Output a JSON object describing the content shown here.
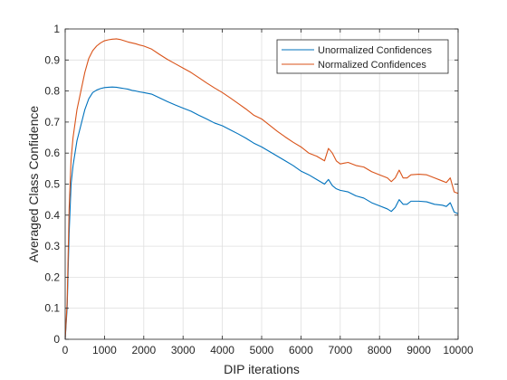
{
  "colors": {
    "series1": "#0072BD",
    "series2": "#D95319",
    "grid": "#DFDFDF",
    "axis": "#262626"
  },
  "chart_data": {
    "type": "line",
    "xlabel": "DIP iterations",
    "ylabel": "Averaged Class Confidence",
    "xlim": [
      0,
      10000
    ],
    "ylim": [
      0,
      1
    ],
    "xticks": [
      0,
      1000,
      2000,
      3000,
      4000,
      5000,
      6000,
      7000,
      8000,
      9000,
      10000
    ],
    "yticks": [
      0,
      0.1,
      0.2,
      0.3,
      0.4,
      0.5,
      0.6,
      0.7,
      0.8,
      0.9,
      1
    ],
    "grid": true,
    "legend_position": "top-right",
    "series": [
      {
        "name": "Unormalized Confidences",
        "color": "#0072BD",
        "x": [
          0,
          50,
          100,
          150,
          200,
          300,
          400,
          500,
          600,
          700,
          800,
          900,
          1000,
          1100,
          1200,
          1300,
          1400,
          1500,
          1600,
          1700,
          1800,
          1900,
          2000,
          2200,
          2400,
          2600,
          2800,
          3000,
          3200,
          3400,
          3600,
          3800,
          4000,
          4200,
          4400,
          4600,
          4800,
          5000,
          5200,
          5400,
          5600,
          5800,
          6000,
          6200,
          6400,
          6600,
          6700,
          6800,
          6900,
          7000,
          7200,
          7400,
          7600,
          7800,
          8000,
          8200,
          8300,
          8400,
          8500,
          8600,
          8700,
          8800,
          9000,
          9200,
          9400,
          9600,
          9700,
          9800,
          9900,
          10000
        ],
        "values": [
          0.0,
          0.1,
          0.34,
          0.5,
          0.56,
          0.64,
          0.69,
          0.74,
          0.775,
          0.795,
          0.803,
          0.808,
          0.811,
          0.812,
          0.813,
          0.812,
          0.81,
          0.808,
          0.806,
          0.802,
          0.8,
          0.797,
          0.795,
          0.79,
          0.778,
          0.766,
          0.755,
          0.745,
          0.735,
          0.722,
          0.71,
          0.697,
          0.688,
          0.675,
          0.662,
          0.648,
          0.632,
          0.62,
          0.605,
          0.59,
          0.575,
          0.56,
          0.542,
          0.53,
          0.515,
          0.5,
          0.515,
          0.495,
          0.485,
          0.48,
          0.475,
          0.462,
          0.455,
          0.44,
          0.43,
          0.42,
          0.412,
          0.425,
          0.45,
          0.435,
          0.435,
          0.445,
          0.445,
          0.443,
          0.435,
          0.432,
          0.428,
          0.44,
          0.41,
          0.405
        ]
      },
      {
        "name": "Normalized Confidences",
        "color": "#D95319",
        "x": [
          0,
          50,
          100,
          150,
          200,
          300,
          400,
          500,
          600,
          700,
          800,
          900,
          1000,
          1100,
          1200,
          1300,
          1400,
          1500,
          1600,
          1700,
          1800,
          1900,
          2000,
          2200,
          2400,
          2600,
          2800,
          3000,
          3200,
          3400,
          3600,
          3800,
          4000,
          4200,
          4400,
          4600,
          4800,
          5000,
          5200,
          5400,
          5600,
          5800,
          6000,
          6200,
          6400,
          6600,
          6700,
          6800,
          6900,
          7000,
          7200,
          7400,
          7600,
          7800,
          8000,
          8200,
          8300,
          8400,
          8500,
          8600,
          8700,
          8800,
          9000,
          9200,
          9400,
          9600,
          9700,
          9800,
          9900,
          10000
        ],
        "values": [
          0.0,
          0.12,
          0.42,
          0.58,
          0.65,
          0.74,
          0.8,
          0.86,
          0.905,
          0.93,
          0.945,
          0.955,
          0.962,
          0.965,
          0.967,
          0.968,
          0.966,
          0.962,
          0.958,
          0.955,
          0.952,
          0.948,
          0.945,
          0.935,
          0.918,
          0.902,
          0.888,
          0.874,
          0.86,
          0.843,
          0.826,
          0.81,
          0.795,
          0.778,
          0.76,
          0.742,
          0.722,
          0.71,
          0.69,
          0.67,
          0.652,
          0.635,
          0.62,
          0.6,
          0.59,
          0.575,
          0.615,
          0.6,
          0.575,
          0.565,
          0.57,
          0.56,
          0.555,
          0.54,
          0.53,
          0.52,
          0.508,
          0.52,
          0.545,
          0.52,
          0.52,
          0.53,
          0.532,
          0.53,
          0.52,
          0.51,
          0.505,
          0.52,
          0.475,
          0.47
        ]
      }
    ]
  }
}
